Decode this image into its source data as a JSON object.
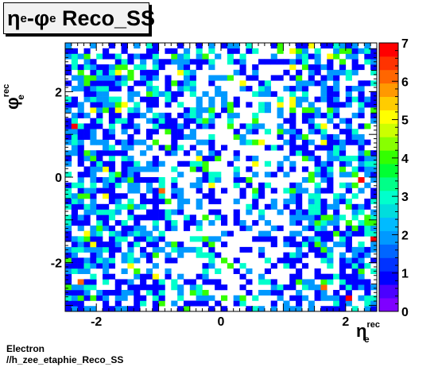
{
  "chart_data": {
    "type": "heatmap",
    "title": "ηe-φe Reco_SS",
    "xlabel": "η e rec",
    "ylabel": "φ e rec",
    "x_range": [
      -2.5,
      2.5
    ],
    "y_range": [
      -3.1416,
      3.1416
    ],
    "x_bins": 50,
    "y_bins": 50,
    "x_ticks": [
      "-2",
      "0",
      "2"
    ],
    "y_ticks": [
      "-2",
      "0",
      "2"
    ],
    "z_range": [
      0,
      7
    ],
    "z_ticks": [
      "0",
      "1",
      "2",
      "3",
      "4",
      "5",
      "6",
      "7"
    ],
    "grid": false,
    "legend": "color-scale-right",
    "palette": [
      "#7f00ff",
      "#4b00ff",
      "#0000ff",
      "#0033ff",
      "#0066ff",
      "#0099ff",
      "#00bbff",
      "#00dddd",
      "#00ffcc",
      "#00ff88",
      "#00ff33",
      "#33ff00",
      "#88ff00",
      "#ccff00",
      "#ffff00",
      "#ffcc00",
      "#ff9900",
      "#ff6600",
      "#ff3300",
      "#ff0000"
    ],
    "notable_cells": [
      {
        "eta": -2.35,
        "phi": 1.21,
        "value": 7
      },
      {
        "eta": -0.95,
        "phi": -0.28,
        "value": 6
      },
      {
        "eta": 2.25,
        "phi": -0.05,
        "value": 7
      },
      {
        "eta": 2.45,
        "phi": -1.41,
        "value": 7
      },
      {
        "eta": 2.05,
        "phi": -2.79,
        "value": 7
      },
      {
        "eta": -2.25,
        "phi": -2.42,
        "value": 6
      },
      {
        "eta": 1.65,
        "phi": -2.54,
        "value": 6
      },
      {
        "eta": 0.65,
        "phi": 0.77,
        "value": 5
      },
      {
        "eta": -1.85,
        "phi": 0.13,
        "value": 5
      },
      {
        "eta": -0.65,
        "phi": 2.41,
        "value": 5
      },
      {
        "eta": 1.15,
        "phi": 1.71,
        "value": 5
      },
      {
        "eta": -1.45,
        "phi": -2.04,
        "value": 5
      },
      {
        "eta": 1.75,
        "phi": 2.78,
        "value": 5
      }
    ]
  },
  "footer": {
    "line1": "Electron",
    "line2": "//h_zee_etaphie_Reco_SS"
  }
}
